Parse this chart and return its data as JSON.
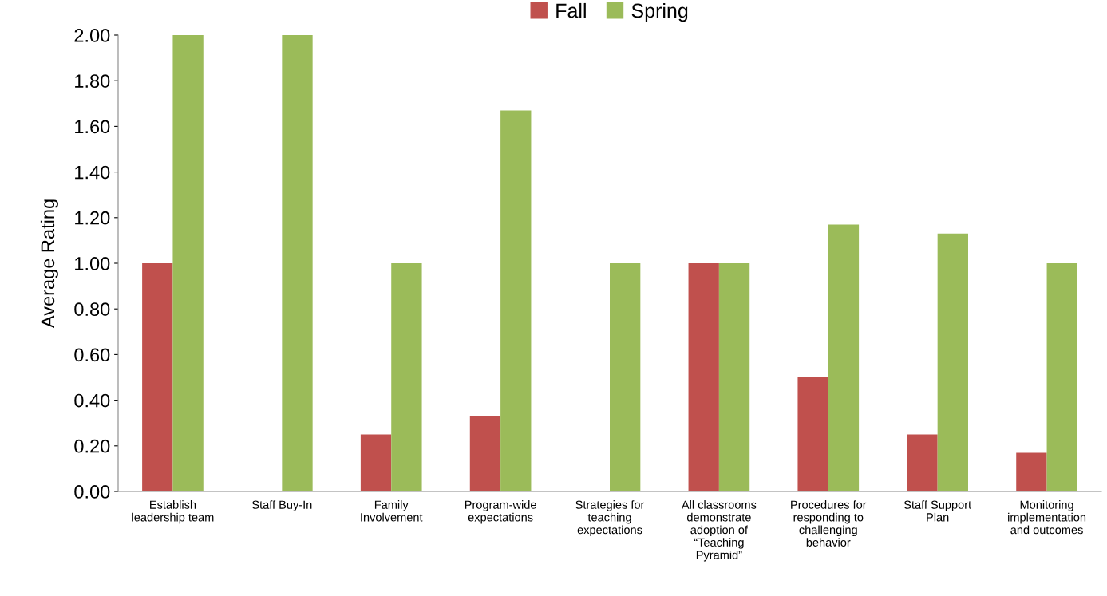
{
  "chart_data": {
    "type": "bar",
    "ylabel": "Average Rating",
    "categories": [
      "Establish\nleadership team",
      "Staff Buy-In",
      "Family\nInvolvement",
      "Program-wide\nexpectations",
      "Strategies for\nteaching\nexpectations",
      "All classrooms\ndemonstrate\nadoption of\n“Teaching\nPyramid”",
      "Procedures for\nresponding to\nchallenging\nbehavior",
      "Staff Support\nPlan",
      "Monitoring\nimplementation\nand outcomes"
    ],
    "series": [
      {
        "name": "Fall",
        "color": "#c0504d",
        "values": [
          1.0,
          0,
          0.25,
          0.33,
          0,
          1.0,
          0.5,
          0.25,
          0.17
        ]
      },
      {
        "name": "Spring",
        "color": "#9bbb59",
        "values": [
          2.0,
          2.0,
          1.0,
          1.67,
          1.0,
          1.0,
          1.17,
          1.13,
          1.0
        ]
      }
    ],
    "ylim": [
      0,
      2
    ],
    "yticks": [
      {
        "value": 0,
        "label": "0.00"
      },
      {
        "value": 0.2,
        "label": "0.20"
      },
      {
        "value": 0.4,
        "label": "0.40"
      },
      {
        "value": 0.6,
        "label": "0.60"
      },
      {
        "value": 0.8,
        "label": "0.80"
      },
      {
        "value": 1.0,
        "label": "1.00"
      },
      {
        "value": 1.2,
        "label": "1.20"
      },
      {
        "value": 1.4,
        "label": "1.40"
      },
      {
        "value": 1.6,
        "label": "1.60"
      },
      {
        "value": 1.8,
        "label": "1.80"
      },
      {
        "value": 2.0,
        "label": "2.00"
      }
    ],
    "grid": false,
    "legend": "top"
  }
}
